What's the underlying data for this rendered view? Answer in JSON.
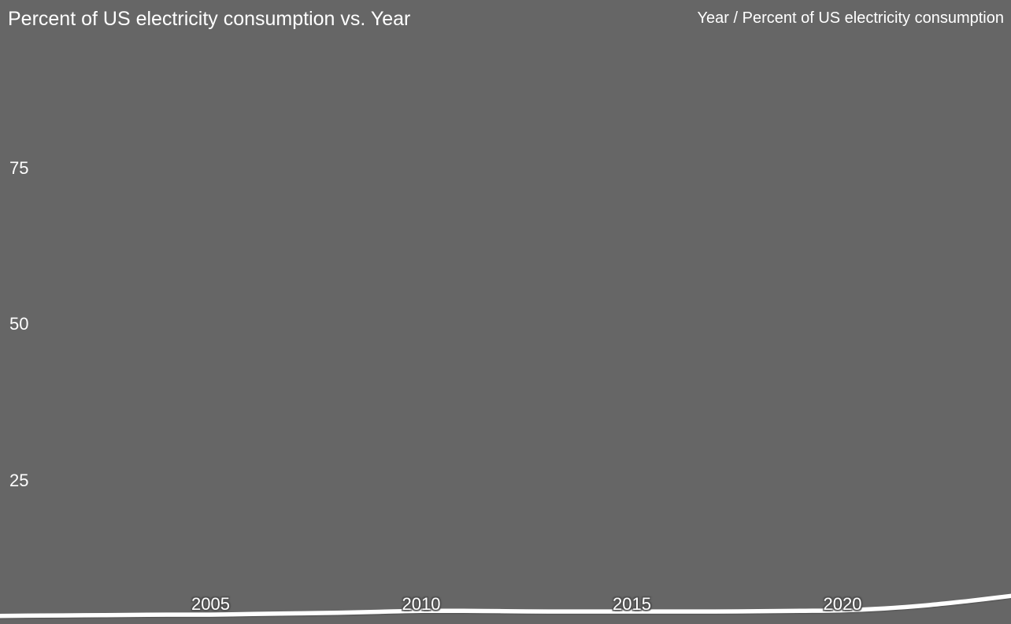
{
  "chart": {
    "title": "Percent of US electricity consumption vs. Year",
    "axis_hint": "Year / Percent of US electricity consumption",
    "colors": {
      "background": "#666666",
      "text": "#ffffff",
      "line": "#ffffff",
      "tick_halo": "#4f4f4f"
    }
  },
  "chart_data": {
    "type": "line",
    "title": "Percent of US electricity consumption vs. Year",
    "xlabel": "Year",
    "ylabel": "Percent of US electricity consumption",
    "x": [
      2000,
      2001,
      2002,
      2003,
      2004,
      2005,
      2006,
      2007,
      2008,
      2009,
      2010,
      2011,
      2012,
      2013,
      2014,
      2015,
      2016,
      2017,
      2018,
      2019,
      2020,
      2021,
      2022,
      2023,
      2024
    ],
    "series": [
      {
        "name": "Percent of US electricity consumption",
        "values": [
          3.3,
          3.35,
          3.4,
          3.45,
          3.5,
          3.5,
          3.6,
          3.7,
          3.8,
          3.95,
          4.1,
          4.1,
          4.05,
          4.0,
          4.0,
          4.0,
          4.0,
          4.0,
          4.05,
          4.1,
          4.2,
          4.5,
          5.0,
          5.7,
          6.5
        ]
      }
    ],
    "x_ticks": [
      2005,
      2010,
      2015,
      2020
    ],
    "y_ticks": [
      25,
      50,
      75
    ],
    "xlim": [
      2000,
      2024
    ],
    "ylim": [
      2,
      102
    ],
    "grid": false,
    "legend": false,
    "line_color": "#ffffff",
    "background_color": "#666666"
  }
}
